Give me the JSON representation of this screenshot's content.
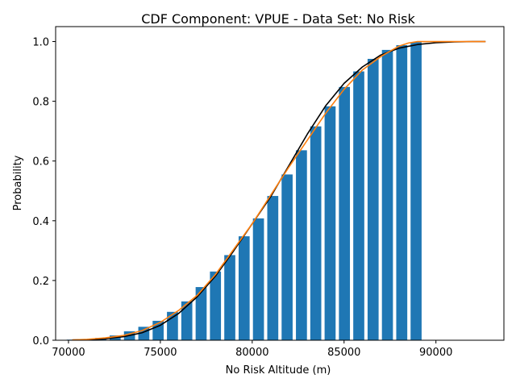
{
  "chart_data": {
    "type": "bar",
    "title": "CDF Component: VPUE - Data Set: No Risk",
    "xlabel": "No Risk Altitude (m)",
    "ylabel": "Probability",
    "xlim": [
      69300,
      93700
    ],
    "ylim": [
      0,
      1.05
    ],
    "xticks": [
      70000,
      75000,
      80000,
      85000,
      90000
    ],
    "yticks": [
      0.0,
      0.2,
      0.4,
      0.6,
      0.8,
      1.0
    ],
    "grid": false,
    "bar_color": "#1f77b4",
    "bar_width": 600,
    "bars": {
      "x": [
        70200,
        70980,
        71760,
        72540,
        73320,
        74100,
        74880,
        75660,
        76440,
        77220,
        78000,
        78780,
        79560,
        80340,
        81120,
        81900,
        82680,
        83460,
        84240,
        85020,
        85800,
        86580,
        87360,
        88140,
        88920
      ],
      "values": [
        0.002,
        0.004,
        0.008,
        0.016,
        0.03,
        0.045,
        0.065,
        0.095,
        0.13,
        0.178,
        0.23,
        0.285,
        0.348,
        0.408,
        0.483,
        0.555,
        0.636,
        0.716,
        0.783,
        0.848,
        0.9,
        0.942,
        0.972,
        0.988,
        0.998
      ]
    },
    "series": [
      {
        "color": "#000000",
        "x": [
          70200,
          71000,
          72000,
          73000,
          74000,
          75000,
          76000,
          77000,
          78000,
          79000,
          80000,
          81000,
          82000,
          83000,
          84000,
          85000,
          86000,
          87000,
          88000,
          89000,
          90000,
          91000,
          92000,
          92700
        ],
        "values": [
          0.001,
          0.002,
          0.005,
          0.012,
          0.025,
          0.05,
          0.09,
          0.145,
          0.215,
          0.3,
          0.39,
          0.48,
          0.585,
          0.69,
          0.785,
          0.86,
          0.915,
          0.955,
          0.978,
          0.99,
          0.996,
          0.999,
          1.0,
          1.0
        ]
      },
      {
        "color": "#ff7f0e",
        "x": [
          70200,
          71000,
          72000,
          73000,
          74000,
          75000,
          76000,
          77000,
          78000,
          79000,
          80000,
          81000,
          82000,
          83000,
          84000,
          85000,
          86000,
          87000,
          88000,
          88500,
          89000,
          90000,
          91000,
          92000,
          92700
        ],
        "values": [
          0.001,
          0.003,
          0.008,
          0.016,
          0.032,
          0.06,
          0.1,
          0.15,
          0.22,
          0.305,
          0.39,
          0.485,
          0.58,
          0.67,
          0.76,
          0.84,
          0.905,
          0.95,
          0.985,
          0.995,
          1.0,
          1.0,
          1.0,
          1.0,
          1.0
        ]
      }
    ]
  }
}
